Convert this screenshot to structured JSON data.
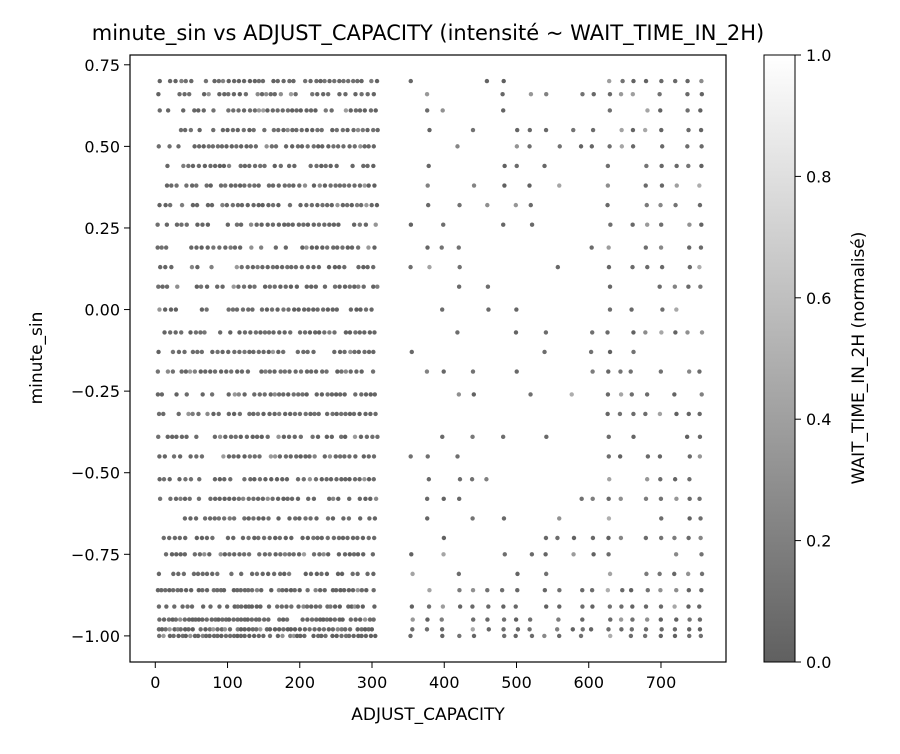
{
  "chart_data": {
    "type": "scatter",
    "title": "minute_sin vs ADJUST_CAPACITY (intensité ~ WAIT_TIME_IN_2H)",
    "xlabel": "ADJUST_CAPACITY",
    "ylabel": "minute_sin",
    "xlim": [
      -35,
      790
    ],
    "ylim": [
      -1.08,
      0.78
    ],
    "x_ticks": [
      0,
      100,
      200,
      300,
      400,
      500,
      600,
      700
    ],
    "x_tick_labels": [
      "0",
      "100",
      "200",
      "300",
      "400",
      "500",
      "600",
      "700"
    ],
    "y_ticks": [
      -1.0,
      -0.75,
      -0.5,
      -0.25,
      0.0,
      0.25,
      0.5,
      0.75
    ],
    "y_tick_labels": [
      "−1.00",
      "−0.75",
      "−0.50",
      "−0.25",
      "0.00",
      "0.25",
      "0.50",
      "0.75"
    ],
    "grid": false,
    "point_color_map": "grayscale (dark = low, white = high)",
    "y_levels": [
      -1.0,
      -0.98,
      -0.95,
      -0.91,
      -0.86,
      -0.81,
      -0.75,
      -0.7,
      -0.64,
      -0.58,
      -0.52,
      -0.45,
      -0.39,
      -0.32,
      -0.26,
      -0.19,
      -0.13,
      -0.07,
      0.0,
      0.07,
      0.13,
      0.19,
      0.26,
      0.32,
      0.38,
      0.44,
      0.5,
      0.55,
      0.61,
      0.66,
      0.7
    ],
    "point_summary": [
      {
        "x_range": [
          0,
          310
        ],
        "y_range": [
          -1.0,
          0.7
        ],
        "density": "very dense",
        "description": "rows of points at every y level across x 0–310"
      },
      {
        "x_range": [
          350,
          480
        ],
        "y_range": [
          -1.0,
          0.7
        ],
        "density": "medium",
        "description": "scattered columns of points"
      },
      {
        "x_range": [
          480,
          600
        ],
        "y_range": [
          -1.0,
          0.7
        ],
        "density": "sparse",
        "description": "sparse columns, empty centre around y -0.5 to 0.2"
      },
      {
        "x_range": [
          600,
          760
        ],
        "y_range": [
          -1.0,
          0.7
        ],
        "density": "dense",
        "description": "columns of points near x 605, 630, 700, 720, 740, 755"
      }
    ],
    "colorbar": {
      "label": "WAIT_TIME_IN_2H (normalisé)",
      "range": [
        0.0,
        1.0
      ],
      "ticks": [
        0.0,
        0.2,
        0.4,
        0.6,
        0.8,
        1.0
      ],
      "tick_labels": [
        "0.0",
        "0.2",
        "0.4",
        "0.6",
        "0.8",
        "1.0"
      ],
      "color_low": "#606060",
      "color_high": "#ffffff"
    }
  }
}
